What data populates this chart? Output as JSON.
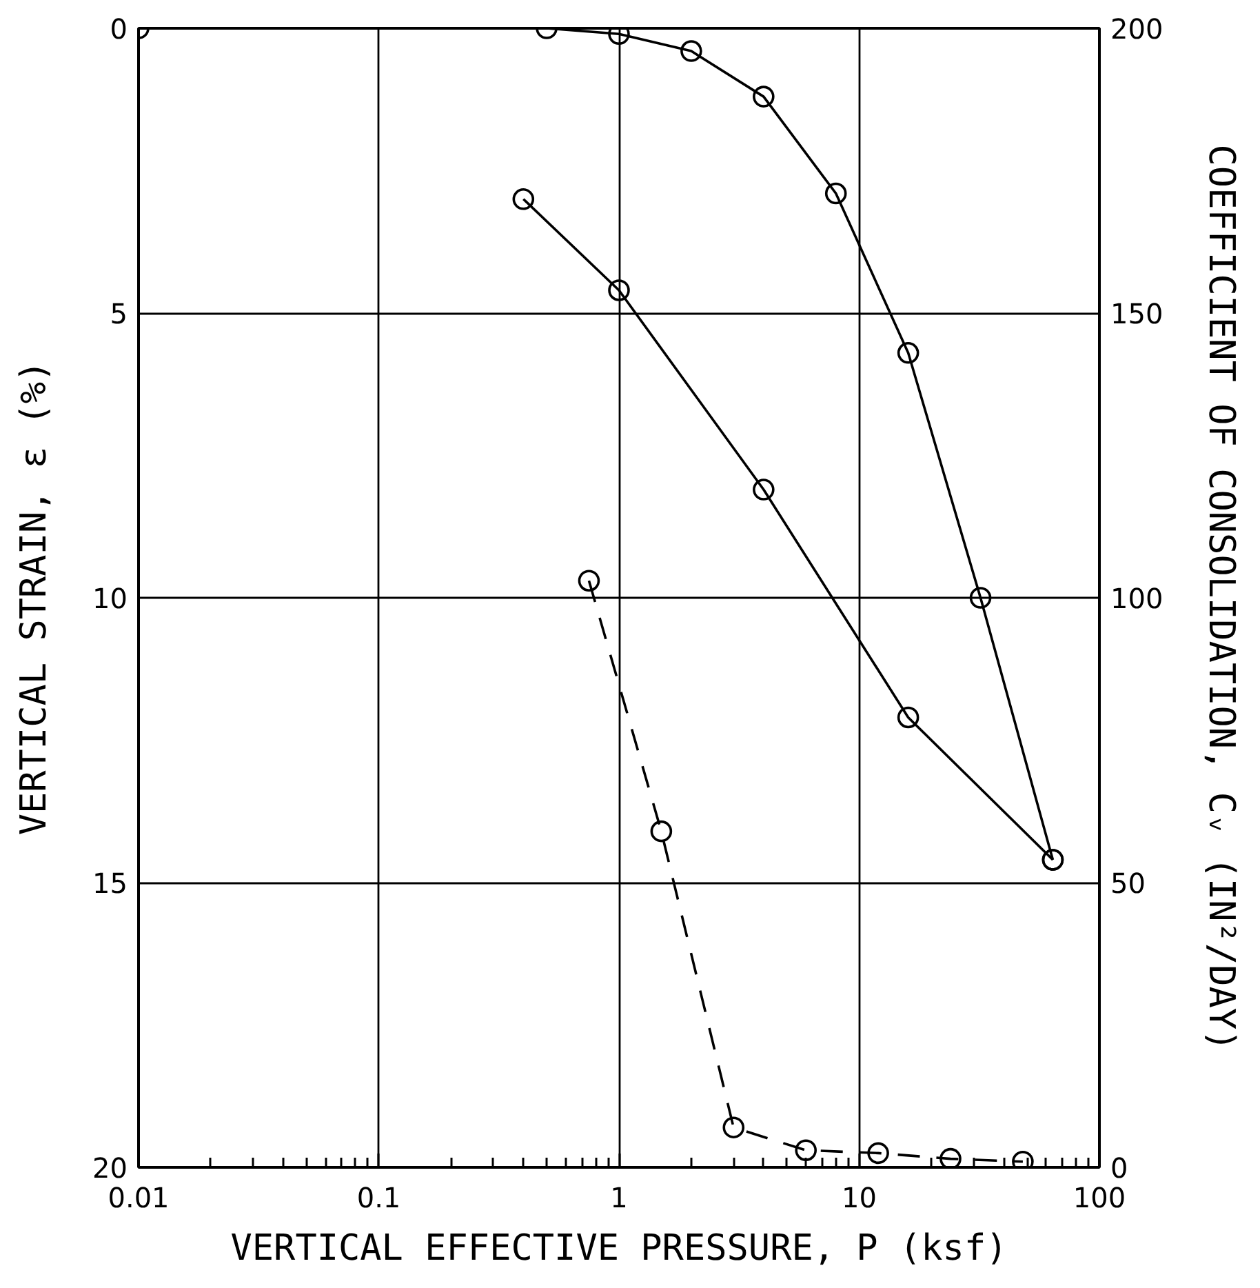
{
  "chart_data": {
    "type": "line",
    "xlabel": "VERTICAL EFFECTIVE PRESSURE, P (ksf)",
    "ylabel": "VERTICAL STRAIN, ε (%)",
    "y2label": "COEFFICIENT OF CONSOLIDATION, Cᵥ (IN²/DAY)",
    "log": "x",
    "xlim": [
      0.01,
      100
    ],
    "xticks": [
      0.01,
      0.1,
      1,
      10,
      100
    ],
    "ylim": [
      20,
      0
    ],
    "yticks": [
      0,
      5,
      10,
      15,
      20
    ],
    "y2lim": [
      0,
      200
    ],
    "y2ticks": [
      0,
      50,
      100,
      150,
      200
    ],
    "grid": true,
    "marker": "circle",
    "series": [
      {
        "color": "#000000",
        "line_style": "solid",
        "x": [
          0.01,
          0.5,
          1,
          2,
          4,
          8,
          16,
          32,
          64
        ],
        "values": [
          0,
          0,
          0.1,
          0.4,
          1.2,
          2.9,
          5.7,
          10.0,
          14.6
        ]
      },
      {
        "color": "#000000",
        "line_style": "solid",
        "axis": "y2",
        "x": [
          0.4,
          1,
          4,
          16,
          64
        ],
        "values": [
          170,
          154,
          119,
          79,
          54
        ]
      },
      {
        "color": "#000000",
        "line_style": "dashed",
        "axis": "y2",
        "x": [
          0.75,
          1.5,
          3,
          6,
          12,
          24,
          48
        ],
        "values": [
          103,
          59,
          7,
          3,
          2.5,
          1.5,
          1
        ]
      }
    ]
  }
}
